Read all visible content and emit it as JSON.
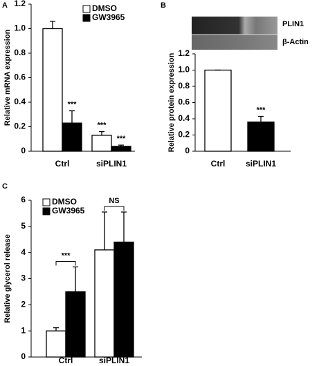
{
  "chart_data": [
    {
      "type": "bar",
      "panel": "A",
      "ylabel": "Relative mRNA expression",
      "categories": [
        "Ctrl",
        "siPLIN1"
      ],
      "series": [
        {
          "name": "DMSO",
          "color": "#ffffff",
          "values": [
            1.0,
            0.13
          ],
          "errors": [
            0.06,
            0.03
          ]
        },
        {
          "name": "GW3965",
          "color": "#000000",
          "values": [
            0.23,
            0.04
          ],
          "errors": [
            0.1,
            0.01
          ]
        }
      ],
      "ylim": [
        0,
        1.2
      ],
      "yticks": [
        0,
        {
          "value": 0.2,
          "label": "0.2"
        },
        {
          "value": 0.4,
          "label": "0.4"
        },
        {
          "value": 0.6,
          "label": "0.6"
        },
        {
          "value": 0.8,
          "label": "0.8"
        },
        {
          "value": 1,
          "label": "1.0"
        },
        {
          "value": 1.2,
          "label": "1.2"
        }
      ],
      "annotations": [
        "***",
        "***",
        "***"
      ]
    },
    {
      "type": "bar",
      "panel": "B",
      "ylabel": "Relative protein expression",
      "blot_labels": [
        "PLIN1",
        "β-Actin"
      ],
      "categories": [
        "Ctrl",
        "siPLIN1"
      ],
      "series": [
        {
          "colors": [
            "#ffffff",
            "#000000"
          ],
          "values": [
            1.0,
            0.36
          ],
          "errors": [
            0,
            0.07
          ]
        }
      ],
      "ylim": [
        0,
        1.2
      ],
      "yticks": [
        0,
        {
          "value": 0.2,
          "label": "0.2"
        },
        {
          "value": 0.4,
          "label": "0.4"
        },
        {
          "value": 0.6,
          "label": "0.6"
        },
        {
          "value": 0.8,
          "label": "0.8"
        },
        {
          "value": 1,
          "label": "1.0"
        },
        {
          "value": 1.2,
          "label": "1.2"
        }
      ],
      "annotations": [
        "***"
      ]
    },
    {
      "type": "bar",
      "panel": "C",
      "ylabel": "Relative glycerol release",
      "categories": [
        "Ctrl",
        "siPLIN1"
      ],
      "series": [
        {
          "name": "DMSO",
          "color": "#ffffff",
          "values": [
            1.0,
            4.1
          ],
          "errors": [
            0.12,
            1.45
          ]
        },
        {
          "name": "GW3965",
          "color": "#000000",
          "values": [
            2.5,
            4.4
          ],
          "errors": [
            0.95,
            1.15
          ]
        }
      ],
      "ylim": [
        0,
        6
      ],
      "yticks": [
        0,
        1,
        2,
        3,
        4,
        5,
        6
      ],
      "annotations": [
        "***",
        "NS"
      ]
    }
  ]
}
